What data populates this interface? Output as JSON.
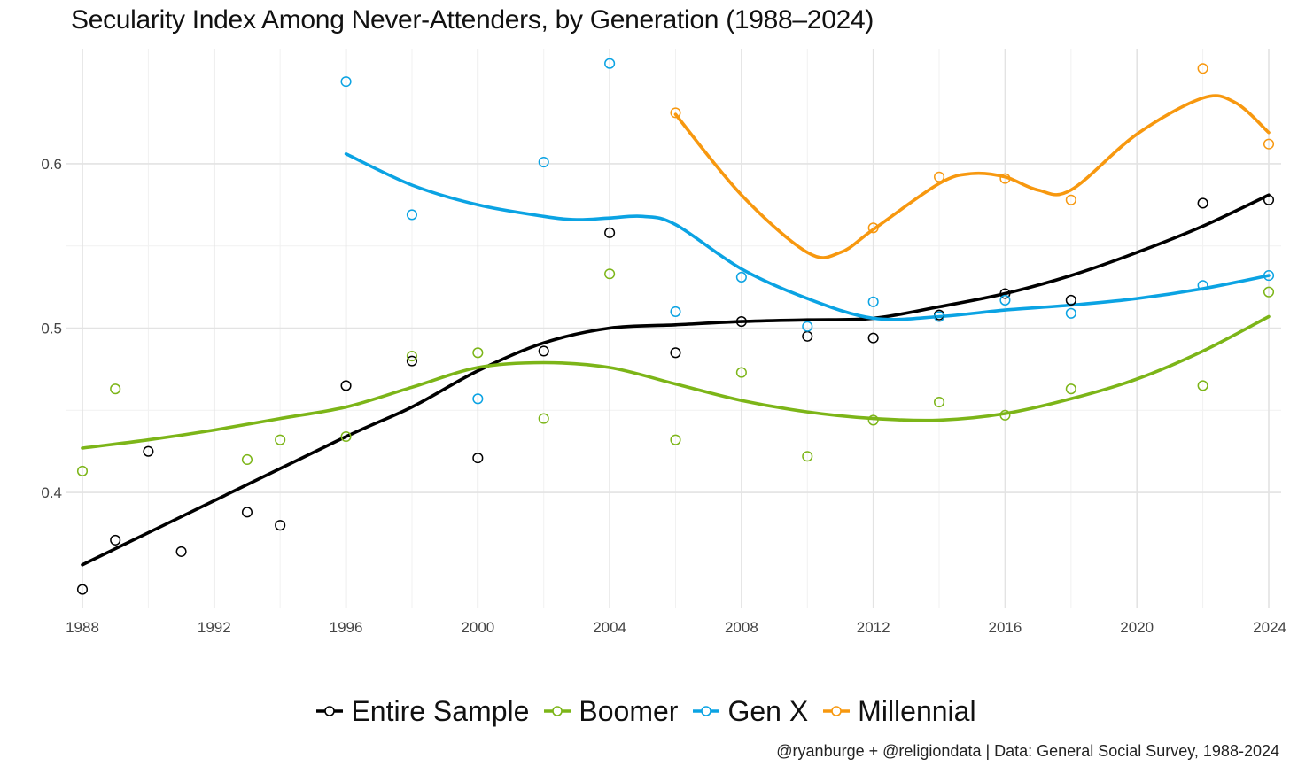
{
  "chart_data": {
    "type": "scatter",
    "title": "Secularity Index Among Never-Attenders, by Generation (1988–2024)",
    "xlabel": "",
    "ylabel": "",
    "xlim": [
      1988,
      2024
    ],
    "ylim": [
      0.33,
      0.67
    ],
    "x_ticks": [
      1988,
      1992,
      1996,
      2000,
      2004,
      2008,
      2012,
      2016,
      2020,
      2024
    ],
    "y_ticks": [
      0.4,
      0.5,
      0.6
    ],
    "y_tick_labels": [
      "0.4",
      "0.5",
      "0.6"
    ],
    "grid": true,
    "legend_position": "bottom",
    "caption": "@ryanburge + @religiondata | Data: General Social Survey, 1988-2024",
    "series": [
      {
        "name": "Entire Sample",
        "color": "#000000",
        "points": [
          [
            1988,
            0.341
          ],
          [
            1989,
            0.371
          ],
          [
            1990,
            0.425
          ],
          [
            1991,
            0.364
          ],
          [
            1993,
            0.388
          ],
          [
            1994,
            0.38
          ],
          [
            1996,
            0.465
          ],
          [
            1998,
            0.48
          ],
          [
            2000,
            0.421
          ],
          [
            2002,
            0.486
          ],
          [
            2004,
            0.558
          ],
          [
            2006,
            0.485
          ],
          [
            2008,
            0.504
          ],
          [
            2010,
            0.495
          ],
          [
            2012,
            0.494
          ],
          [
            2014,
            0.508
          ],
          [
            2016,
            0.521
          ],
          [
            2018,
            0.517
          ],
          [
            2022,
            0.576
          ],
          [
            2024,
            0.578
          ]
        ],
        "smooth": [
          [
            1988,
            0.356
          ],
          [
            1992,
            0.395
          ],
          [
            1996,
            0.434
          ],
          [
            1998,
            0.452
          ],
          [
            2000,
            0.474
          ],
          [
            2002,
            0.491
          ],
          [
            2004,
            0.5
          ],
          [
            2006,
            0.502
          ],
          [
            2008,
            0.504
          ],
          [
            2010,
            0.505
          ],
          [
            2012,
            0.506
          ],
          [
            2014,
            0.513
          ],
          [
            2016,
            0.521
          ],
          [
            2018,
            0.532
          ],
          [
            2020,
            0.546
          ],
          [
            2022,
            0.562
          ],
          [
            2024,
            0.581
          ]
        ]
      },
      {
        "name": "Boomer",
        "color": "#7cb518",
        "points": [
          [
            1988,
            0.413
          ],
          [
            1989,
            0.463
          ],
          [
            1993,
            0.42
          ],
          [
            1994,
            0.432
          ],
          [
            1996,
            0.434
          ],
          [
            1998,
            0.483
          ],
          [
            2000,
            0.485
          ],
          [
            2002,
            0.445
          ],
          [
            2004,
            0.533
          ],
          [
            2006,
            0.432
          ],
          [
            2008,
            0.473
          ],
          [
            2010,
            0.422
          ],
          [
            2012,
            0.444
          ],
          [
            2014,
            0.455
          ],
          [
            2016,
            0.447
          ],
          [
            2018,
            0.463
          ],
          [
            2022,
            0.465
          ],
          [
            2024,
            0.522
          ]
        ],
        "smooth": [
          [
            1988,
            0.427
          ],
          [
            1990,
            0.432
          ],
          [
            1992,
            0.438
          ],
          [
            1994,
            0.445
          ],
          [
            1996,
            0.452
          ],
          [
            1998,
            0.464
          ],
          [
            2000,
            0.476
          ],
          [
            2002,
            0.479
          ],
          [
            2004,
            0.476
          ],
          [
            2006,
            0.466
          ],
          [
            2008,
            0.456
          ],
          [
            2010,
            0.449
          ],
          [
            2012,
            0.445
          ],
          [
            2014,
            0.444
          ],
          [
            2016,
            0.448
          ],
          [
            2018,
            0.457
          ],
          [
            2020,
            0.469
          ],
          [
            2022,
            0.486
          ],
          [
            2024,
            0.507
          ]
        ]
      },
      {
        "name": "Gen X",
        "color": "#0ba3e3",
        "points": [
          [
            1996,
            0.65
          ],
          [
            1998,
            0.569
          ],
          [
            2000,
            0.457
          ],
          [
            2002,
            0.601
          ],
          [
            2004,
            0.661
          ],
          [
            2006,
            0.51
          ],
          [
            2008,
            0.531
          ],
          [
            2010,
            0.501
          ],
          [
            2012,
            0.516
          ],
          [
            2014,
            0.507
          ],
          [
            2016,
            0.517
          ],
          [
            2018,
            0.509
          ],
          [
            2022,
            0.526
          ],
          [
            2024,
            0.532
          ]
        ],
        "smooth": [
          [
            1996,
            0.606
          ],
          [
            1998,
            0.587
          ],
          [
            2000,
            0.575
          ],
          [
            2002,
            0.568
          ],
          [
            2003,
            0.566
          ],
          [
            2004,
            0.567
          ],
          [
            2005,
            0.568
          ],
          [
            2006,
            0.563
          ],
          [
            2008,
            0.536
          ],
          [
            2010,
            0.518
          ],
          [
            2012,
            0.506
          ],
          [
            2014,
            0.507
          ],
          [
            2016,
            0.511
          ],
          [
            2018,
            0.514
          ],
          [
            2020,
            0.518
          ],
          [
            2022,
            0.524
          ],
          [
            2024,
            0.532
          ]
        ]
      },
      {
        "name": "Millennial",
        "color": "#f7980f",
        "points": [
          [
            2006,
            0.631
          ],
          [
            2012,
            0.561
          ],
          [
            2014,
            0.592
          ],
          [
            2016,
            0.591
          ],
          [
            2018,
            0.578
          ],
          [
            2022,
            0.658
          ],
          [
            2024,
            0.612
          ]
        ],
        "smooth": [
          [
            2006,
            0.63
          ],
          [
            2008,
            0.581
          ],
          [
            2010,
            0.546
          ],
          [
            2011,
            0.546
          ],
          [
            2012,
            0.56
          ],
          [
            2014,
            0.588
          ],
          [
            2015,
            0.594
          ],
          [
            2016,
            0.592
          ],
          [
            2017,
            0.584
          ],
          [
            2018,
            0.584
          ],
          [
            2020,
            0.618
          ],
          [
            2022,
            0.64
          ],
          [
            2023,
            0.637
          ],
          [
            2024,
            0.619
          ]
        ]
      }
    ]
  }
}
